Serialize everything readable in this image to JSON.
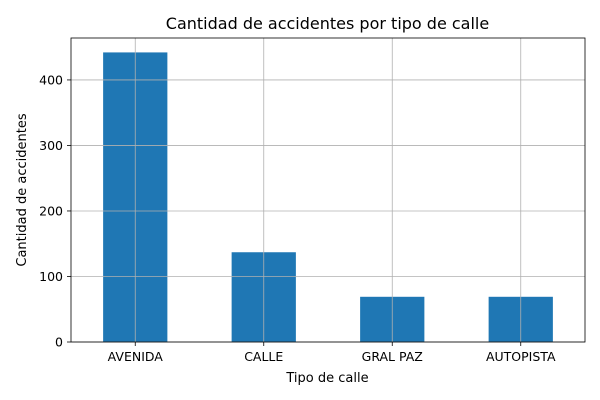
{
  "chart_data": {
    "type": "bar",
    "title": "Cantidad de accidentes por tipo de calle",
    "xlabel": "Tipo de calle",
    "ylabel": "Cantidad de accidentes",
    "categories": [
      "AVENIDA",
      "CALLE",
      "GRAL PAZ",
      "AUTOPISTA"
    ],
    "values": [
      442,
      137,
      69,
      69
    ],
    "ylim": [
      0,
      464
    ],
    "yticks": [
      0,
      100,
      200,
      300,
      400
    ],
    "grid": true,
    "bar_color": "#1f77b4"
  }
}
